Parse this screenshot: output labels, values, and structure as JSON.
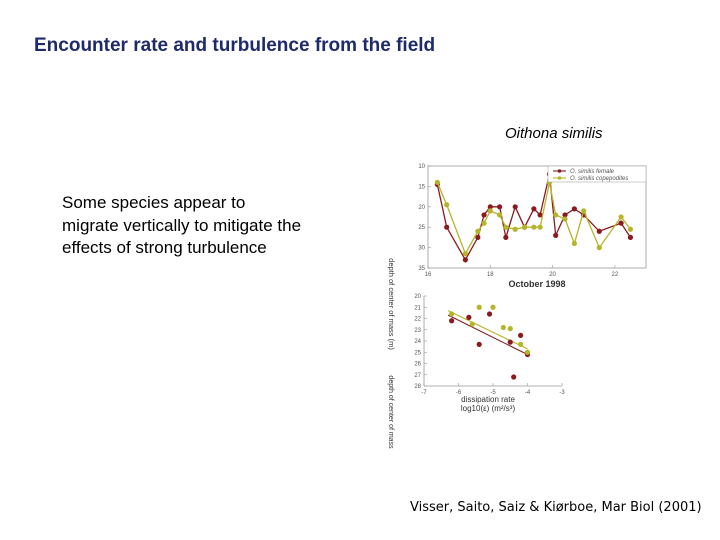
{
  "slide": {
    "title": "Encounter rate and turbulence from the field",
    "species_label": "Oithona similis",
    "body_text": "Some species appear to migrate vertically to mitigate the effects of strong turbulence",
    "citation": "Visser, Saito, Saiz & Kiørboe, Mar Biol (2001)"
  },
  "colors": {
    "title": "#1f2a6b",
    "female": "#8b1a1f",
    "copepodites": "#b5b52a"
  },
  "chart_data": [
    {
      "type": "line",
      "xlabel": "October 1998",
      "ylabel": "depth of center of mass (m)",
      "y_inverted": true,
      "ylim": [
        10,
        35
      ],
      "xlim": [
        16,
        23
      ],
      "xticks": [
        16,
        18,
        20,
        22
      ],
      "yticks": [
        10,
        15,
        20,
        25,
        30,
        35
      ],
      "legend_position": "top-right",
      "series": [
        {
          "name": "O. similis female",
          "color": "#8b1a1f",
          "x": [
            16.3,
            16.6,
            17.2,
            17.6,
            17.8,
            18.0,
            18.3,
            18.5,
            18.8,
            19.1,
            19.4,
            19.6,
            19.9,
            20.1,
            20.4,
            20.7,
            21.0,
            21.5,
            22.2,
            22.5
          ],
          "y": [
            14.5,
            25,
            33,
            27.5,
            22,
            20,
            20,
            27.5,
            20,
            25,
            20.5,
            22,
            12,
            27,
            22,
            20.5,
            22,
            26,
            24,
            27.5
          ]
        },
        {
          "name": "O. similis copepodites",
          "color": "#b5b52a",
          "x": [
            16.3,
            16.6,
            17.2,
            17.6,
            17.8,
            18.0,
            18.3,
            18.5,
            18.8,
            19.1,
            19.4,
            19.6,
            19.9,
            20.1,
            20.4,
            20.7,
            21.0,
            21.5,
            22.2,
            22.5
          ],
          "y": [
            14,
            19.5,
            31.5,
            26,
            24,
            21,
            22,
            25,
            25.5,
            25,
            25,
            25,
            14,
            22,
            23,
            29,
            21,
            30,
            22.5,
            25.5
          ]
        }
      ]
    },
    {
      "type": "scatter",
      "xlabel": "dissipation rate",
      "xlabel2": "log10(ε) (m²/s³)",
      "ylabel": "depth of center of mass",
      "y_inverted": true,
      "xlim": [
        -7,
        -3
      ],
      "ylim": [
        20,
        28
      ],
      "xticks": [
        -7,
        -6,
        -5,
        -4,
        -3
      ],
      "yticks": [
        20,
        21,
        22,
        23,
        24,
        25,
        26,
        27,
        28
      ],
      "series": [
        {
          "name": "O. similis female",
          "color": "#8b1a1f",
          "x": [
            -6.2,
            -5.7,
            -5.1,
            -5.4,
            -4.5,
            -4.2,
            -4.4,
            -4.0
          ],
          "y": [
            22.2,
            21.9,
            21.6,
            24.3,
            24.1,
            23.5,
            27.2,
            25.2
          ]
        },
        {
          "name": "O. similis copepodites",
          "color": "#b5b52a",
          "x": [
            -6.2,
            -5.6,
            -5.4,
            -5.0,
            -4.7,
            -4.5,
            -4.2,
            -4.0
          ],
          "y": [
            21.6,
            22.5,
            21.0,
            21.0,
            22.8,
            22.9,
            24.3,
            25.0
          ]
        }
      ],
      "trendlines": [
        {
          "color": "#8b1a1f",
          "x": [
            -6.3,
            -4.0
          ],
          "y": [
            21.7,
            25.2
          ]
        },
        {
          "color": "#b5b52a",
          "x": [
            -6.3,
            -4.0
          ],
          "y": [
            21.3,
            24.7
          ]
        }
      ]
    }
  ]
}
